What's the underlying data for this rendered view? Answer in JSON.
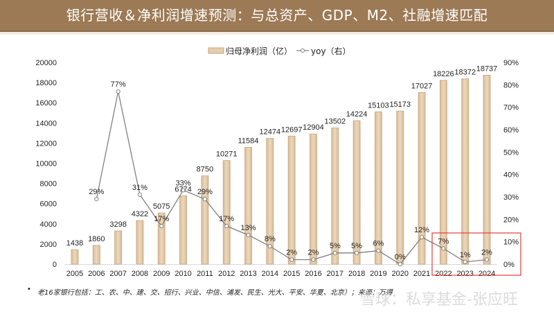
{
  "header": {
    "title": "银行营收＆净利润增速预测：与总资产、GDP、M2、社融增速匹配"
  },
  "colors": {
    "header_bg": "#9C7A55",
    "bar_fill": "#E4CDAF",
    "bar_stroke": "#C9A57A",
    "line": "#7f7f7f",
    "highlight_box": "#E03C3C"
  },
  "chart_data": {
    "type": "bar",
    "title": "",
    "categories": [
      "2005",
      "2006",
      "2007",
      "2008",
      "2009",
      "2010",
      "2011",
      "2012",
      "2013",
      "2014",
      "2015",
      "2016",
      "2017",
      "2018",
      "2019",
      "2020",
      "2021",
      "2022",
      "2023",
      "2024"
    ],
    "series": [
      {
        "name": "归母净利润（亿）",
        "type": "bar",
        "axis": "left",
        "values": [
          1438,
          1860,
          3298,
          4322,
          5075,
          6774,
          8750,
          10271,
          11584,
          12474,
          12697,
          12904,
          13502,
          14224,
          15103,
          15173,
          17027,
          18226,
          18372,
          18737
        ],
        "labels": [
          "1438",
          "1860",
          "3298",
          "4322",
          "5075",
          "6774",
          "8750",
          "10271",
          "11584",
          "12474",
          "12697",
          "12904",
          "13502",
          "14224",
          "15103",
          "15173",
          "17027",
          "18226",
          "18372",
          "18737"
        ]
      },
      {
        "name": "yoy（右）",
        "type": "line",
        "axis": "right",
        "values": [
          null,
          29,
          77,
          31,
          17,
          33,
          29,
          17,
          13,
          8,
          2,
          2,
          5,
          5,
          6,
          0,
          12,
          7,
          1,
          2
        ],
        "labels": [
          "",
          "29%",
          "77%",
          "31%",
          "17%",
          "33%",
          "29%",
          "17%",
          "13%",
          "8%",
          "2%",
          "2%",
          "5%",
          "5%",
          "6%",
          "0%",
          "12%",
          "7%",
          "1%",
          "2%"
        ]
      }
    ],
    "left_axis": {
      "min": 0,
      "max": 20000,
      "ticks": [
        "0",
        "2000",
        "4000",
        "6000",
        "8000",
        "10000",
        "12000",
        "14000",
        "16000",
        "18000",
        "20000"
      ]
    },
    "right_axis": {
      "min": 0,
      "max": 90,
      "ticks": [
        "0%",
        "10%",
        "20%",
        "30%",
        "40%",
        "50%",
        "60%",
        "70%",
        "80%",
        "90%"
      ]
    },
    "legend": {
      "placement": "top-center",
      "entries": [
        "归母净利润（亿）",
        "yoy（右）"
      ]
    },
    "grid": false,
    "highlight": {
      "categories": [
        "2022",
        "2023",
        "2024"
      ],
      "note": "red box around forecast years"
    }
  },
  "footnote": {
    "bullet": "•",
    "text": "老16家银行包括：工、农、中、建、交、招行、兴业、中信、浦发、民生、光大、平安、华夏、北京）；来源：万得"
  },
  "watermark": {
    "text": "雪球：私享基金-张应旺"
  }
}
